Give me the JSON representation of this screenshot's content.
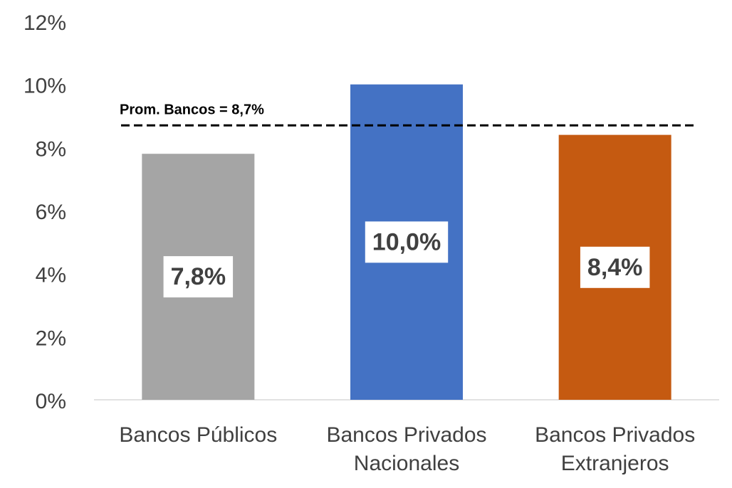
{
  "chart_data": {
    "type": "bar",
    "categories": [
      "Bancos Públicos",
      "Bancos Privados Nacionales",
      "Bancos Privados Extranjeros"
    ],
    "values": [
      7.8,
      10.0,
      8.4
    ],
    "value_labels": [
      "7,8%",
      "10,0%",
      "8,4%"
    ],
    "colors": [
      "#a5a5a5",
      "#4472c4",
      "#c55a11"
    ],
    "ylim": [
      0,
      12
    ],
    "yticks": [
      {
        "value": 0,
        "label": "0%"
      },
      {
        "value": 2,
        "label": "2%"
      },
      {
        "value": 4,
        "label": "4%"
      },
      {
        "value": 6,
        "label": "6%"
      },
      {
        "value": 8,
        "label": "8%"
      },
      {
        "value": 10,
        "label": "10%"
      },
      {
        "value": 12,
        "label": "12%"
      }
    ],
    "reference_line": {
      "value": 8.7,
      "label": "Prom. Bancos = 8,7%"
    },
    "grid": false
  }
}
